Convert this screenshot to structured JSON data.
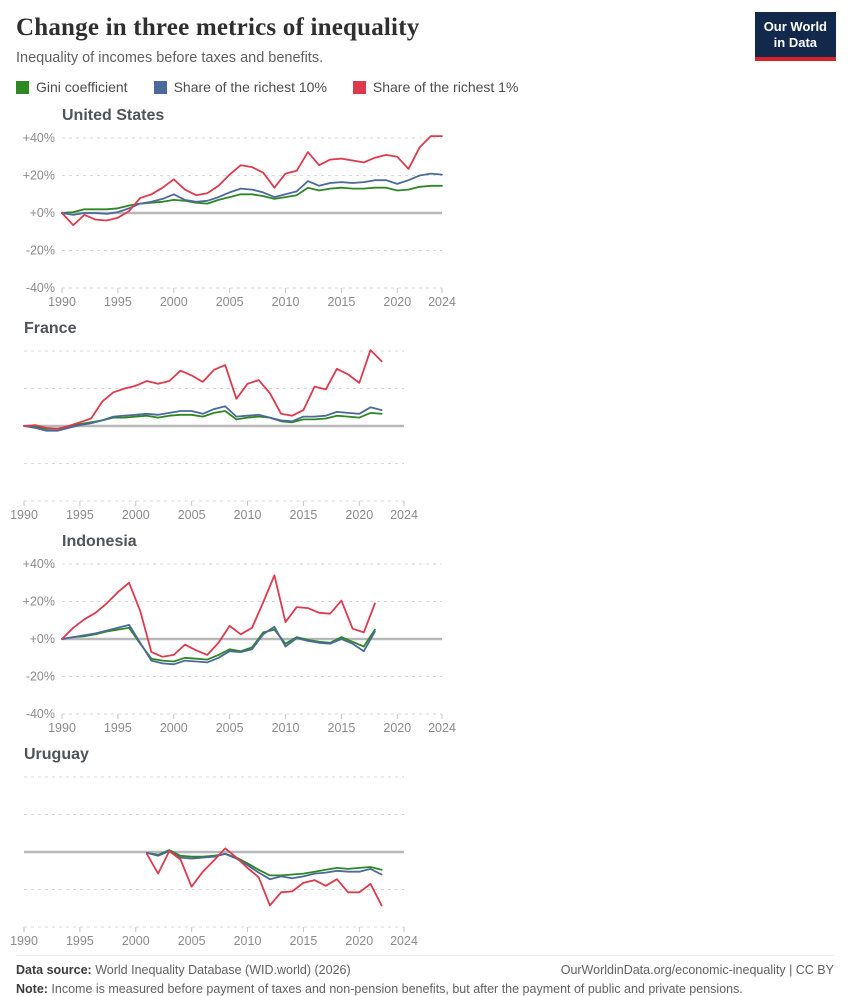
{
  "header": {
    "title": "Change in three metrics of inequality",
    "subtitle": "Inequality of incomes before taxes and benefits.",
    "logo": {
      "line1": "Our World",
      "line2": "in Data",
      "bg_color": "#12294B",
      "accent_color": "#D8232A"
    }
  },
  "chart_data": {
    "type": "line",
    "title": "Change in three metrics of inequality",
    "subtitle": "Inequality of incomes before taxes and benefits.",
    "layout": "2x2 small multiples, shared axes",
    "xlim": [
      1990,
      2024
    ],
    "ylim": [
      -44,
      44
    ],
    "x_ticks": [
      1990,
      1995,
      2000,
      2005,
      2010,
      2015,
      2020,
      2024
    ],
    "y_ticks": [
      {
        "label": "+40%",
        "value": 40
      },
      {
        "label": "+20%",
        "value": 20
      },
      {
        "label": "+0%",
        "value": 0
      },
      {
        "label": "-20%",
        "value": -20
      },
      {
        "label": "-40%",
        "value": -40
      }
    ],
    "grid": "dashed horizontal gridlines, solid zero line",
    "legend_position": "top",
    "axis": {
      "grid_color": "#d9d9d9",
      "zero_line_color": "#b8b8b8",
      "tick_label_color": "#8b8b8b"
    },
    "unit": "% change since first year shown",
    "series_meta": [
      {
        "key": "gini",
        "label": "Gini coefficient",
        "color": "#2D8723"
      },
      {
        "key": "top10",
        "label": "Share of the richest 10%",
        "color": "#4C699B"
      },
      {
        "key": "top1",
        "label": "Share of the richest 1%",
        "color": "#DE3A4D"
      }
    ],
    "panels": [
      {
        "title": "United States",
        "start_year": 1990,
        "series": {
          "gini": [
            0,
            0.5,
            2,
            2,
            2,
            2.5,
            4,
            5,
            5.5,
            6,
            7,
            6.5,
            5.5,
            5,
            7,
            8.5,
            10,
            10,
            9,
            7.5,
            8.5,
            9.5,
            13.5,
            12,
            13,
            13.5,
            13,
            13,
            13.5,
            13.5,
            12,
            12.5,
            14,
            14.5,
            14.5
          ],
          "top10": [
            0,
            -1,
            0,
            0,
            -0.5,
            0.5,
            2.5,
            5,
            6,
            7.5,
            10,
            7,
            6,
            6.5,
            8.5,
            11,
            13,
            12.5,
            11,
            8.5,
            10,
            11.5,
            17,
            14.5,
            16,
            16.5,
            16,
            16.5,
            17.5,
            17.5,
            15.5,
            17.5,
            20,
            21,
            20.5
          ],
          "top1": [
            0,
            -6.5,
            -1,
            -3.5,
            -4,
            -2.5,
            1,
            8,
            10,
            13.5,
            18,
            12.5,
            9.5,
            10.5,
            14.5,
            20.5,
            25.5,
            24.5,
            21.5,
            13.5,
            21,
            22.5,
            32.5,
            25.5,
            28.5,
            29,
            28,
            27,
            29.5,
            31,
            30,
            23.5,
            35,
            41,
            41
          ]
        }
      },
      {
        "title": "France",
        "start_year": 1990,
        "series": {
          "gini": [
            0,
            -0.5,
            -1.5,
            -1.5,
            -0.5,
            1,
            2,
            3,
            4.5,
            4.5,
            5,
            5.5,
            4.5,
            5.5,
            6,
            6,
            5,
            7,
            8,
            3.5,
            4.5,
            5,
            4.5,
            2.5,
            2,
            3.5,
            3.5,
            4,
            5.5,
            5,
            4.5,
            7,
            6.5
          ],
          "top10": [
            0,
            -1,
            -2.5,
            -2.5,
            -1,
            0.5,
            1.5,
            3,
            5,
            5.5,
            6,
            6.5,
            6,
            7,
            8,
            8,
            6.5,
            9,
            10.5,
            5,
            5.5,
            6,
            4.5,
            3,
            2.5,
            5,
            5,
            5.5,
            7.5,
            7,
            6.5,
            10,
            8.5
          ],
          "top1": [
            0,
            0.5,
            -1,
            -1.5,
            0,
            2,
            4,
            13,
            18,
            20,
            21.5,
            24,
            22.5,
            24,
            29.5,
            27,
            23.5,
            30,
            32.5,
            14.5,
            22.5,
            24.5,
            17.5,
            6.5,
            5.5,
            8.5,
            21,
            19.5,
            30.5,
            27.5,
            23,
            40.5,
            34.5
          ]
        }
      },
      {
        "title": "Indonesia",
        "start_year": 1990,
        "series": {
          "gini": [
            0,
            1,
            1.5,
            2.5,
            4,
            5,
            6,
            -2.5,
            -10.5,
            -11.5,
            -12,
            -10,
            -10.5,
            -11,
            -8.5,
            -5.5,
            -6.5,
            -4.5,
            3.5,
            5,
            -2.5,
            1,
            -0.5,
            -1.5,
            -2,
            1,
            -1.5,
            -4,
            5
          ],
          "top10": [
            0,
            1,
            2,
            3,
            4.5,
            6,
            7.5,
            -2,
            -11.5,
            -13,
            -13.5,
            -11.5,
            -12,
            -12.5,
            -10,
            -6.5,
            -7,
            -5.5,
            2.5,
            6.5,
            -4,
            0.5,
            -1,
            -2,
            -2.5,
            0,
            -2.5,
            -6.5,
            4
          ],
          "top1": [
            0,
            6,
            10.5,
            14,
            19,
            25,
            30,
            15,
            -7,
            -9.5,
            -8.5,
            -3,
            -6,
            -8.5,
            -2,
            7,
            2.5,
            6,
            19.5,
            34,
            9,
            17,
            16.5,
            14,
            13.5,
            20.5,
            5.5,
            3.5,
            19
          ]
        }
      },
      {
        "title": "Uruguay",
        "start_year": 2001,
        "series": {
          "gini": [
            -0.5,
            -1.5,
            1,
            -2,
            -2.5,
            -2.5,
            -2,
            -1,
            -3,
            -6,
            -9.5,
            -12.5,
            -12.5,
            -12,
            -11.5,
            -10.5,
            -9.5,
            -8.5,
            -9,
            -8.5,
            -8,
            -9.5
          ],
          "top10": [
            -0.5,
            -2,
            0.5,
            -3,
            -3.5,
            -3,
            -2.5,
            -1,
            -3.5,
            -7,
            -11,
            -14.5,
            -13,
            -14,
            -13,
            -11.5,
            -11,
            -10,
            -10.5,
            -10.5,
            -9,
            -12
          ],
          "top1": [
            -1,
            -11.5,
            0.5,
            -4,
            -18.5,
            -10.5,
            -4.5,
            2,
            -3,
            -8.5,
            -13.5,
            -28.5,
            -21.5,
            -21,
            -16.5,
            -15,
            -18,
            -14.5,
            -21.5,
            -21.5,
            -17,
            -28.5
          ]
        }
      }
    ]
  },
  "footer": {
    "source_label": "Data source:",
    "source_text": " World Inequality Database (WID.world) (2026)",
    "link_text": "OurWorldinData.org/economic-inequality | CC BY",
    "note_label": "Note:",
    "note_text": " Income is measured before payment of taxes and non-pension benefits, but after the payment of public and private pensions."
  }
}
